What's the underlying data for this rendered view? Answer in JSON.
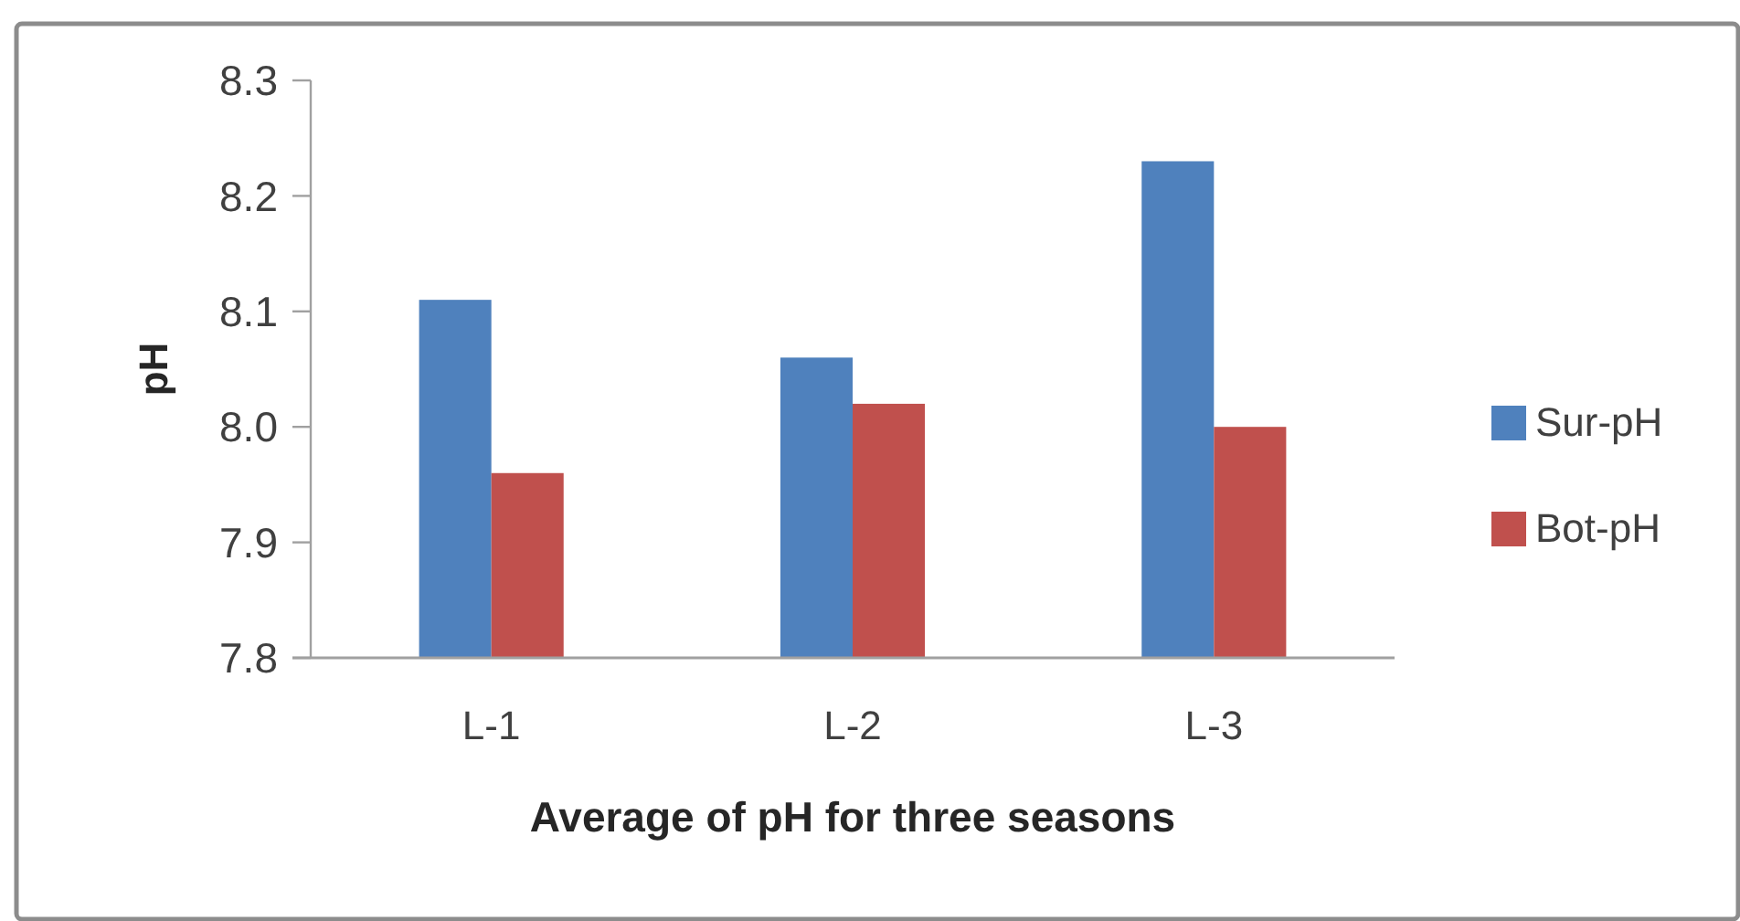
{
  "chart_data": {
    "type": "bar",
    "xlabel": "Average of pH for three seasons",
    "ylabel": "pH",
    "categories": [
      "L-1",
      "L-2",
      "L-3"
    ],
    "series": [
      {
        "name": "Sur-pH",
        "color": "#4f81bd",
        "values": [
          8.11,
          8.06,
          8.23
        ]
      },
      {
        "name": "Bot-pH",
        "color": "#c0504d",
        "values": [
          7.96,
          8.02,
          8.0
        ]
      }
    ],
    "ylim": [
      7.8,
      8.3
    ],
    "yticks": [
      7.8,
      7.9,
      {
        "value": 8,
        "label": "8.0"
      },
      8.1,
      8.2,
      8.3
    ],
    "grid": false,
    "legend": "right"
  }
}
